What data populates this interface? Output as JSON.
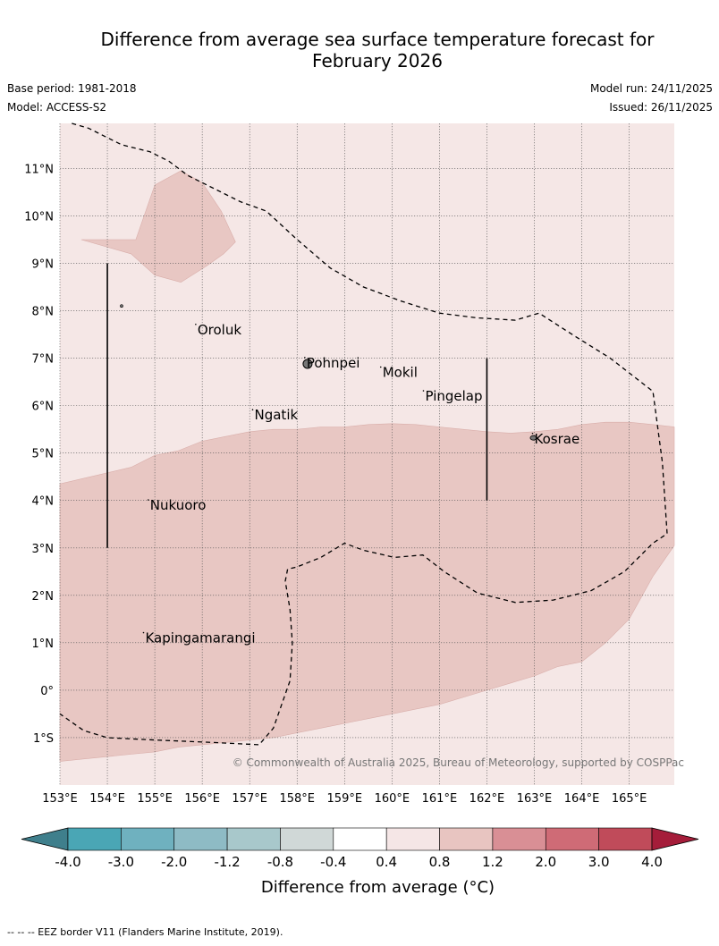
{
  "title_line1": "Difference from average sea surface temperature forecast for",
  "title_line2": "February 2026",
  "base_period": "Base period: 1981-2018",
  "model": "Model: ACCESS-S2",
  "model_run": "Model run: 24/11/2025",
  "issued": "Issued: 26/11/2025",
  "copyright": "© Commonwealth of Australia 2025, Bureau of Meteorology, supported by COSPPac",
  "footnote": "--  --  -- EEZ border V11 (Flanders Marine Institute, 2019).",
  "colorbar_label": "Difference from average (°C)",
  "colorbar_ticks": [
    "-4.0",
    "-3.0",
    "-2.0",
    "-1.2",
    "-0.8",
    "-0.4",
    "0.4",
    "0.8",
    "1.2",
    "2.0",
    "3.0",
    "4.0"
  ],
  "colorbar_colors": [
    "#3f7f8c",
    "#4aa6b5",
    "#6fb1bf",
    "#8ebbc5",
    "#a8c8cb",
    "#d0d8d7",
    "#ffffff",
    "#f5e6e6",
    "#e8c5c1",
    "#d98f95",
    "#cf6b76",
    "#c04b5a",
    "#a51d3a"
  ],
  "lon_labels": [
    "153°E",
    "154°E",
    "155°E",
    "156°E",
    "157°E",
    "158°E",
    "159°E",
    "160°E",
    "161°E",
    "162°E",
    "163°E",
    "164°E",
    "165°E"
  ],
  "lat_labels": [
    "11°N",
    "10°N",
    "9°N",
    "8°N",
    "7°N",
    "6°N",
    "5°N",
    "4°N",
    "3°N",
    "2°N",
    "1°N",
    "0°",
    "1°S"
  ],
  "places": [
    {
      "name": "Oroluk",
      "lon": 155.9,
      "lat": 7.6
    },
    {
      "name": "Pohnpei",
      "lon": 158.2,
      "lat": 6.9
    },
    {
      "name": "Mokil",
      "lon": 159.8,
      "lat": 6.7
    },
    {
      "name": "Pingelap",
      "lon": 160.7,
      "lat": 6.2
    },
    {
      "name": "Ngatik",
      "lon": 157.1,
      "lat": 5.8
    },
    {
      "name": "Kosrae",
      "lon": 163.0,
      "lat": 5.3
    },
    {
      "name": "Nukuoro",
      "lon": 154.9,
      "lat": 3.9
    },
    {
      "name": "Kapingamarangi",
      "lon": 154.8,
      "lat": 1.1
    }
  ],
  "map": {
    "lon_min": 153.0,
    "lon_max": 165.95,
    "lat_min": -2.0,
    "lat_max": 11.95,
    "background_color": "#f5e7e6",
    "anomaly_color": "#e8c7c3"
  },
  "anomaly_regions": [
    [
      [
        154.6,
        9.5
      ],
      [
        155.0,
        10.65
      ],
      [
        155.55,
        10.95
      ],
      [
        156.0,
        10.7
      ],
      [
        156.4,
        10.1
      ],
      [
        156.7,
        9.45
      ],
      [
        156.45,
        9.2
      ],
      [
        156.1,
        8.95
      ],
      [
        155.55,
        8.6
      ],
      [
        155.0,
        8.75
      ],
      [
        154.5,
        9.2
      ],
      [
        153.45,
        9.5
      ]
    ],
    [
      [
        153.0,
        4.35
      ],
      [
        154.5,
        4.7
      ],
      [
        155.0,
        4.95
      ],
      [
        155.5,
        5.05
      ],
      [
        156.0,
        5.25
      ],
      [
        156.5,
        5.35
      ],
      [
        157.0,
        5.45
      ],
      [
        157.5,
        5.5
      ],
      [
        158.0,
        5.5
      ],
      [
        158.5,
        5.55
      ],
      [
        159.0,
        5.55
      ],
      [
        159.5,
        5.6
      ],
      [
        160.0,
        5.62
      ],
      [
        160.5,
        5.6
      ],
      [
        161.0,
        5.55
      ],
      [
        161.5,
        5.5
      ],
      [
        162.0,
        5.45
      ],
      [
        162.5,
        5.42
      ],
      [
        163.0,
        5.45
      ],
      [
        163.5,
        5.5
      ],
      [
        164.0,
        5.6
      ],
      [
        164.5,
        5.65
      ],
      [
        165.0,
        5.65
      ],
      [
        165.5,
        5.6
      ],
      [
        165.95,
        5.55
      ],
      [
        165.95,
        3.05
      ],
      [
        165.5,
        2.4
      ],
      [
        165.0,
        1.5
      ],
      [
        164.5,
        1.0
      ],
      [
        164.0,
        0.6
      ],
      [
        163.5,
        0.5
      ],
      [
        163.0,
        0.3
      ],
      [
        162.5,
        0.15
      ],
      [
        162.0,
        0.0
      ],
      [
        161.5,
        -0.15
      ],
      [
        161.0,
        -0.3
      ],
      [
        160.5,
        -0.4
      ],
      [
        160.0,
        -0.5
      ],
      [
        159.5,
        -0.6
      ],
      [
        159.0,
        -0.7
      ],
      [
        158.5,
        -0.8
      ],
      [
        158.0,
        -0.9
      ],
      [
        157.5,
        -1.0
      ],
      [
        157.0,
        -1.05
      ],
      [
        156.5,
        -1.1
      ],
      [
        156.0,
        -1.15
      ],
      [
        155.5,
        -1.2
      ],
      [
        155.0,
        -1.3
      ],
      [
        154.5,
        -1.35
      ],
      [
        154.0,
        -1.4
      ],
      [
        153.5,
        -1.45
      ],
      [
        153.0,
        -1.5
      ]
    ]
  ],
  "eez_lines": [
    [
      [
        153.25,
        11.95
      ],
      [
        153.6,
        11.85
      ],
      [
        154.3,
        11.5
      ],
      [
        154.9,
        11.35
      ],
      [
        155.3,
        11.15
      ],
      [
        155.7,
        10.85
      ],
      [
        156.4,
        10.5
      ],
      [
        156.8,
        10.3
      ],
      [
        157.35,
        10.1
      ],
      [
        158.0,
        9.5
      ],
      [
        158.7,
        8.9
      ],
      [
        159.4,
        8.5
      ],
      [
        160.2,
        8.2
      ],
      [
        161.0,
        7.95
      ],
      [
        161.8,
        7.85
      ],
      [
        162.6,
        7.8
      ],
      [
        163.1,
        7.95
      ],
      [
        163.8,
        7.5
      ],
      [
        164.6,
        7.0
      ],
      [
        165.5,
        6.3
      ],
      [
        165.7,
        4.8
      ],
      [
        165.8,
        3.3
      ],
      [
        165.5,
        3.1
      ],
      [
        164.9,
        2.5
      ],
      [
        164.2,
        2.1
      ],
      [
        163.4,
        1.9
      ],
      [
        162.6,
        1.85
      ],
      [
        161.8,
        2.05
      ],
      [
        161.1,
        2.5
      ],
      [
        160.65,
        2.85
      ],
      [
        160.05,
        2.8
      ],
      [
        159.4,
        2.95
      ],
      [
        159.0,
        3.1
      ],
      [
        158.5,
        2.8
      ],
      [
        158.0,
        2.6
      ],
      [
        157.8,
        2.55
      ],
      [
        157.75,
        2.3
      ],
      [
        157.85,
        1.7
      ],
      [
        157.9,
        1.0
      ],
      [
        157.85,
        0.2
      ],
      [
        157.5,
        -0.8
      ],
      [
        157.2,
        -1.15
      ],
      [
        156.2,
        -1.1
      ],
      [
        155.0,
        -1.05
      ],
      [
        154.0,
        -1.0
      ],
      [
        153.5,
        -0.85
      ],
      [
        153.0,
        -0.5
      ]
    ]
  ],
  "vertical_bars": [
    {
      "lon": 154.0,
      "lat_from": 9.0,
      "lat_to": 3.0
    },
    {
      "lon": 162.0,
      "lat_from": 7.0,
      "lat_to": 4.0
    }
  ]
}
